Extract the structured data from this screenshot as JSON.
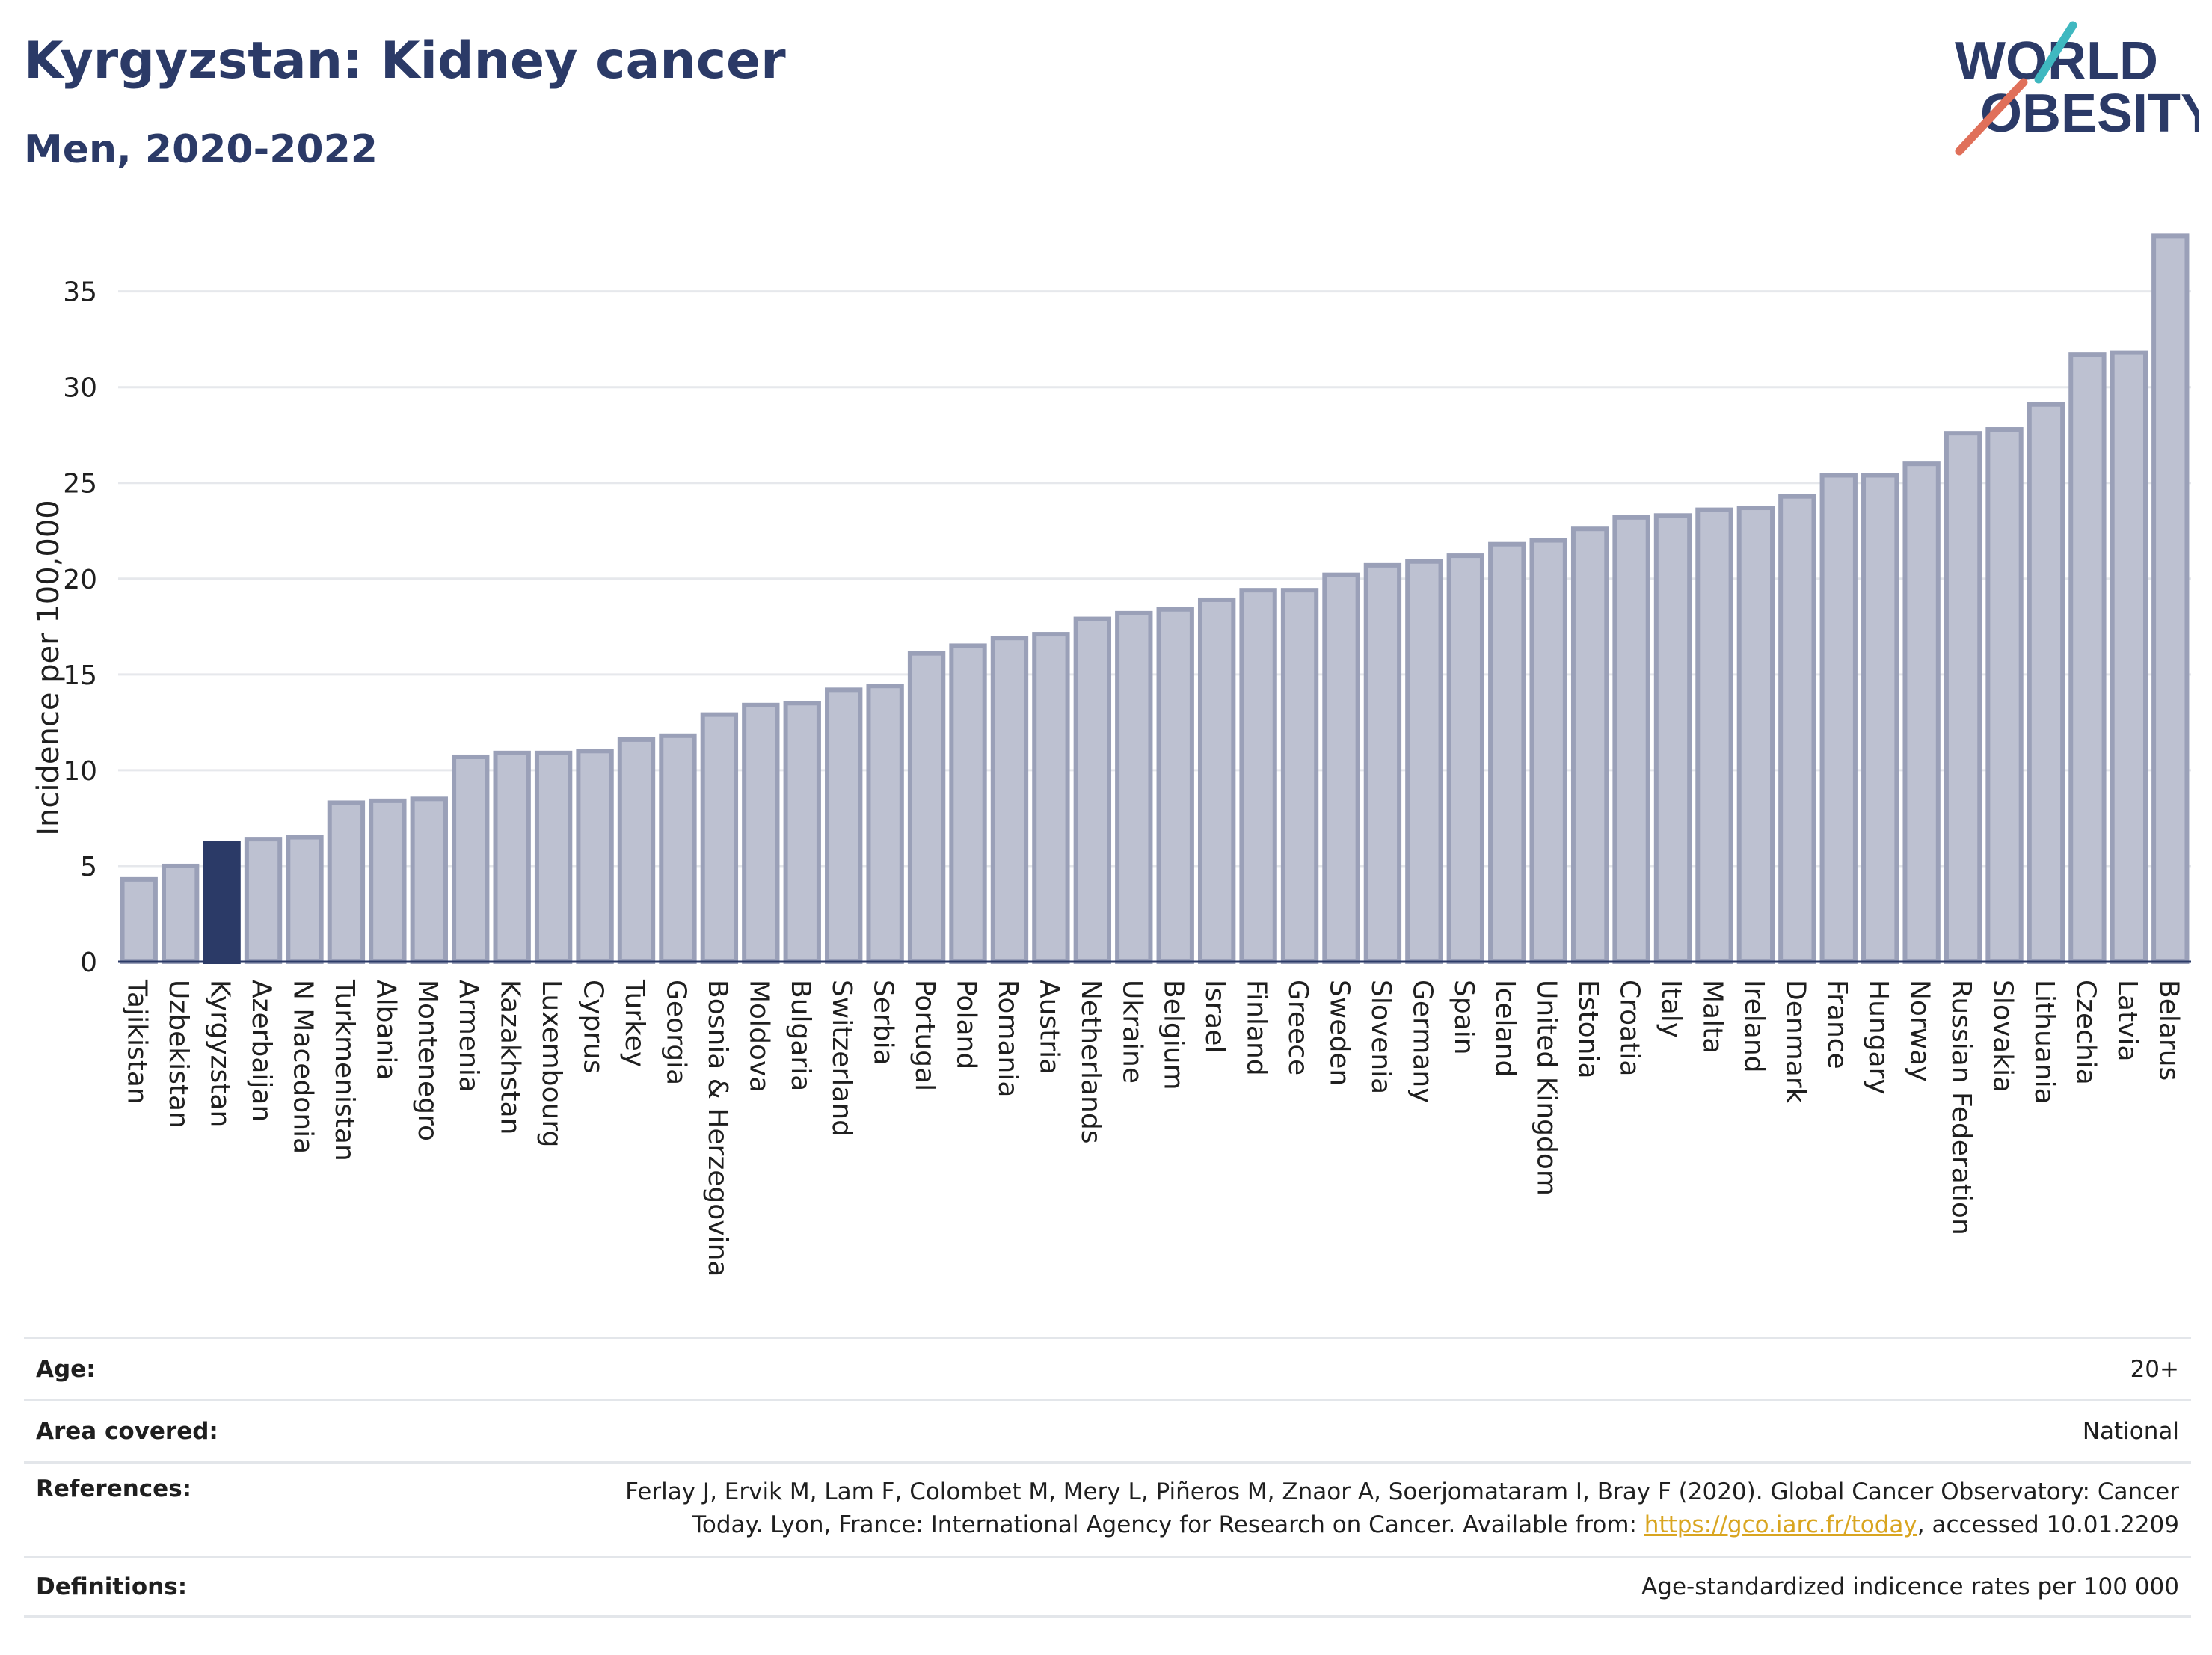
{
  "header": {
    "title": "Kyrgyzstan: Kidney cancer",
    "subtitle": "Men, 2020-2022"
  },
  "logo": {
    "line1": "WORLD",
    "line2": "OBESITY",
    "accent_colors": [
      "#e0705a",
      "#3fb8c0"
    ],
    "text_color": "#2b3a67"
  },
  "chart_data": {
    "type": "bar",
    "title": "Kyrgyzstan: Kidney cancer",
    "subtitle": "Men, 2020-2022",
    "xlabel": "",
    "ylabel": "Incidence per 100,000",
    "ylim": [
      0,
      38.5
    ],
    "yticks": [
      0,
      5,
      10,
      15,
      20,
      25,
      30,
      35
    ],
    "grid": true,
    "highlight": "Kyrgyzstan",
    "bar_color": "#bdc1d1",
    "bar_edge_color": "#9aa0b8",
    "highlight_color": "#2b3a67",
    "categories": [
      "Tajikistan",
      "Uzbekistan",
      "Kyrgyzstan",
      "Azerbaijan",
      "N Macedonia",
      "Turkmenistan",
      "Albania",
      "Montenegro",
      "Armenia",
      "Kazakhstan",
      "Luxembourg",
      "Cyprus",
      "Turkey",
      "Georgia",
      "Bosnia & Herzegovina",
      "Moldova",
      "Bulgaria",
      "Switzerland",
      "Serbia",
      "Portugal",
      "Poland",
      "Romania",
      "Austria",
      "Netherlands",
      "Ukraine",
      "Belgium",
      "Israel",
      "Finland",
      "Greece",
      "Sweden",
      "Slovenia",
      "Germany",
      "Spain",
      "Iceland",
      "United Kingdom",
      "Estonia",
      "Croatia",
      "Italy",
      "Malta",
      "Ireland",
      "Denmark",
      "France",
      "Hungary",
      "Norway",
      "Russian Federation",
      "Slovakia",
      "Lithuania",
      "Czechia",
      "Latvia",
      "Belarus"
    ],
    "values": [
      4.3,
      5.0,
      6.2,
      6.4,
      6.5,
      8.3,
      8.4,
      8.5,
      10.7,
      10.9,
      10.9,
      11.0,
      11.6,
      11.8,
      12.9,
      13.4,
      13.5,
      14.2,
      14.4,
      16.1,
      16.5,
      16.9,
      17.1,
      17.9,
      18.2,
      18.4,
      18.9,
      19.4,
      19.4,
      20.2,
      20.7,
      20.9,
      21.2,
      21.8,
      22.0,
      22.6,
      23.2,
      23.3,
      23.6,
      23.7,
      24.3,
      25.4,
      25.4,
      26.0,
      27.6,
      27.8,
      29.1,
      31.7,
      31.8,
      37.9
    ]
  },
  "details": {
    "age_label": "Age:",
    "age_value": "20+",
    "area_label": "Area covered:",
    "area_value": "National",
    "references_label": "References:",
    "references_text_1": "Ferlay J, Ervik M, Lam F, Colombet M, Mery L, Piñeros M, Znaor A, Soerjomataram I, Bray F (2020). Global Cancer Observatory: Cancer Today. Lyon, France: International Agency for Research on Cancer. Available from: ",
    "references_link": "https://gco.iarc.fr/today",
    "references_text_2": ", accessed 10.01.2209",
    "definitions_label": "Definitions:",
    "definitions_value": "Age-standardized indicence rates per 100 000"
  }
}
